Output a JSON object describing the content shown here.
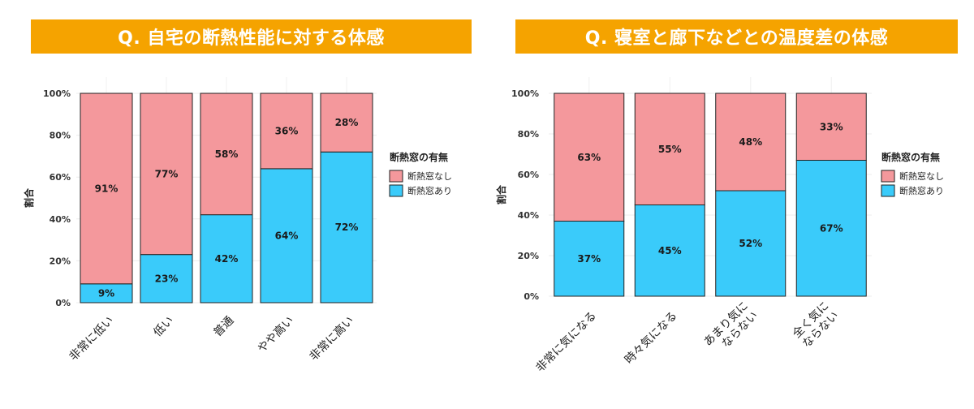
{
  "colors": {
    "nashi": "#F4989C",
    "ari": "#3ACBFA",
    "banner": "#F5A300"
  },
  "legend": {
    "title": "断熱窓の有無",
    "nashi": "断熱窓なし",
    "ari": "断熱窓あり"
  },
  "chart_data": [
    {
      "type": "bar",
      "stacked": true,
      "title": "Q. 自宅の断熱性能に対する体感",
      "ylabel": "割合",
      "ylim": [
        0,
        100
      ],
      "yticks": [
        "0%",
        "20%",
        "40%",
        "60%",
        "80%",
        "100%"
      ],
      "categories": [
        [
          "非常に低い"
        ],
        [
          "低い"
        ],
        [
          "普通"
        ],
        [
          "やや高い"
        ],
        [
          "非常に高い"
        ]
      ],
      "series": [
        {
          "name": "断熱窓あり",
          "values": [
            9,
            23,
            42,
            64,
            72
          ],
          "labels": [
            "9%",
            "23%",
            "42%",
            "64%",
            "72%"
          ]
        },
        {
          "name": "断熱窓なし",
          "values": [
            91,
            77,
            58,
            36,
            28
          ],
          "labels": [
            "91%",
            "77%",
            "58%",
            "36%",
            "28%"
          ]
        }
      ]
    },
    {
      "type": "bar",
      "stacked": true,
      "title": "Q. 寝室と廊下などとの温度差の体感",
      "ylabel": "割合",
      "ylim": [
        0,
        100
      ],
      "yticks": [
        "0%",
        "20%",
        "40%",
        "60%",
        "80%",
        "100%"
      ],
      "categories": [
        [
          "非常に気になる"
        ],
        [
          "時々気になる"
        ],
        [
          "あまり気に",
          "ならない"
        ],
        [
          "全く気に",
          "ならない"
        ]
      ],
      "series": [
        {
          "name": "断熱窓あり",
          "values": [
            37,
            45,
            52,
            67
          ],
          "labels": [
            "37%",
            "45%",
            "52%",
            "67%"
          ]
        },
        {
          "name": "断熱窓なし",
          "values": [
            63,
            55,
            48,
            33
          ],
          "labels": [
            "63%",
            "55%",
            "48%",
            "33%"
          ]
        }
      ]
    }
  ]
}
